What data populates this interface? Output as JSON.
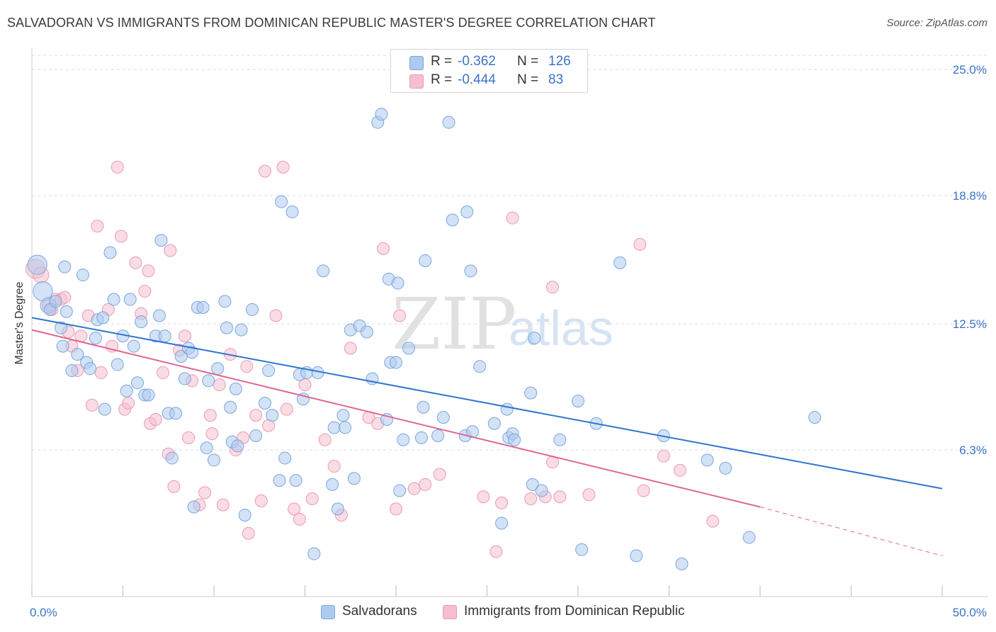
{
  "title": "SALVADORAN VS IMMIGRANTS FROM DOMINICAN REPUBLIC MASTER'S DEGREE CORRELATION CHART",
  "source": "Source: ZipAtlas.com",
  "watermark": {
    "zip": "ZIP",
    "atlas": "atlas"
  },
  "legend_top": {
    "rows": [
      {
        "r_label": "R =",
        "r_value": "-0.362",
        "n_label": "N =",
        "n_value": "126"
      },
      {
        "r_label": "R =",
        "r_value": "-0.444",
        "n_label": "N =",
        "n_value": "83"
      }
    ]
  },
  "legend_bottom": {
    "items": [
      {
        "label": "Salvadorans"
      },
      {
        "label": "Immigrants from Dominican Republic"
      }
    ]
  },
  "colors": {
    "blue_fill": "#aecbef",
    "blue_stroke": "#7aa7dd",
    "blue_line": "#2f74d0",
    "pink_fill": "#f6bfd0",
    "pink_stroke": "#ec9ab4",
    "pink_line": "#e0668f",
    "tick_text": "#3b73c8",
    "grid": "#dcdcdc"
  },
  "chart_data": {
    "type": "scatter",
    "title": "SALVADORAN VS IMMIGRANTS FROM DOMINICAN REPUBLIC MASTER'S DEGREE CORRELATION CHART",
    "xlabel": "",
    "ylabel": "Master's Degree",
    "xlim": [
      0,
      50
    ],
    "ylim": [
      0,
      25.5
    ],
    "x_tick_labels": [
      "0.0%",
      "50.0%"
    ],
    "y_ticks": [
      6.3,
      12.5,
      18.8,
      25.0
    ],
    "y_tick_labels": [
      "6.3%",
      "12.5%",
      "18.8%",
      "25.0%"
    ],
    "grid": "horizontal dashed",
    "legend_position": "top-center",
    "series": [
      {
        "name": "Salvadorans",
        "trend": {
          "x": [
            0,
            50
          ],
          "y": [
            12.8,
            4.4
          ]
        },
        "points": [
          [
            0.3,
            15.4,
            1.6
          ],
          [
            0.6,
            14.1,
            1.6
          ],
          [
            0.9,
            13.4,
            1.3
          ],
          [
            1.0,
            13.2,
            1.0
          ],
          [
            1.3,
            13.6,
            1.0
          ],
          [
            1.6,
            12.3,
            1.0
          ],
          [
            1.7,
            11.4,
            1.0
          ],
          [
            1.8,
            15.3,
            1.0
          ],
          [
            1.9,
            13.1,
            1.0
          ],
          [
            2.2,
            10.2,
            1.0
          ],
          [
            2.5,
            11.0,
            1.0
          ],
          [
            2.8,
            14.9,
            1.0
          ],
          [
            3.0,
            10.6,
            1.0
          ],
          [
            3.2,
            10.3,
            1.0
          ],
          [
            3.5,
            11.8,
            1.0
          ],
          [
            3.6,
            12.7,
            1.0
          ],
          [
            3.9,
            12.8,
            1.0
          ],
          [
            4.0,
            8.3,
            1.0
          ],
          [
            4.3,
            16.0,
            1.0
          ],
          [
            4.5,
            13.7,
            1.0
          ],
          [
            4.7,
            10.5,
            1.0
          ],
          [
            5.0,
            11.9,
            1.0
          ],
          [
            5.2,
            9.2,
            1.0
          ],
          [
            5.4,
            13.7,
            1.0
          ],
          [
            5.6,
            11.4,
            1.0
          ],
          [
            5.8,
            9.6,
            1.0
          ],
          [
            6.0,
            12.6,
            1.0
          ],
          [
            6.2,
            9.0,
            1.0
          ],
          [
            6.4,
            9.0,
            1.0
          ],
          [
            6.8,
            11.9,
            1.0
          ],
          [
            7.0,
            12.9,
            1.0
          ],
          [
            7.1,
            16.6,
            1.0
          ],
          [
            7.3,
            11.9,
            1.0
          ],
          [
            7.5,
            8.1,
            1.0
          ],
          [
            7.7,
            5.9,
            1.0
          ],
          [
            7.9,
            8.1,
            1.0
          ],
          [
            8.2,
            10.9,
            1.0
          ],
          [
            8.4,
            9.8,
            1.0
          ],
          [
            8.6,
            11.3,
            1.0
          ],
          [
            8.8,
            11.1,
            1.0
          ],
          [
            8.9,
            3.5,
            1.0
          ],
          [
            9.1,
            13.3,
            1.0
          ],
          [
            9.4,
            13.3,
            1.0
          ],
          [
            9.6,
            6.4,
            1.0
          ],
          [
            9.7,
            9.7,
            1.0
          ],
          [
            10.0,
            5.8,
            1.0
          ],
          [
            10.2,
            10.3,
            1.0
          ],
          [
            10.6,
            13.6,
            1.0
          ],
          [
            10.7,
            12.3,
            1.0
          ],
          [
            10.9,
            8.4,
            1.0
          ],
          [
            11.0,
            6.7,
            1.0
          ],
          [
            11.2,
            9.3,
            1.0
          ],
          [
            11.3,
            6.5,
            1.0
          ],
          [
            11.5,
            12.2,
            1.0
          ],
          [
            11.7,
            3.1,
            1.0
          ],
          [
            12.1,
            13.2,
            1.0
          ],
          [
            12.3,
            7.0,
            1.0
          ],
          [
            12.8,
            8.6,
            1.0
          ],
          [
            13.0,
            10.2,
            1.0
          ],
          [
            13.2,
            8.0,
            1.0
          ],
          [
            13.6,
            4.8,
            1.0
          ],
          [
            13.7,
            18.5,
            1.0
          ],
          [
            13.9,
            5.9,
            1.0
          ],
          [
            14.3,
            18.0,
            1.0
          ],
          [
            14.5,
            4.8,
            1.0
          ],
          [
            14.7,
            10.0,
            1.0
          ],
          [
            14.9,
            8.8,
            1.0
          ],
          [
            15.1,
            10.1,
            1.0
          ],
          [
            15.5,
            1.2,
            1.0
          ],
          [
            15.7,
            10.1,
            1.0
          ],
          [
            16.0,
            15.1,
            1.0
          ],
          [
            16.5,
            4.6,
            1.0
          ],
          [
            16.6,
            7.4,
            1.0
          ],
          [
            16.8,
            3.4,
            1.0
          ],
          [
            17.1,
            8.0,
            1.0
          ],
          [
            17.2,
            7.4,
            1.0
          ],
          [
            17.5,
            12.2,
            1.0
          ],
          [
            17.7,
            4.9,
            1.0
          ],
          [
            18.0,
            12.4,
            1.0
          ],
          [
            18.4,
            12.1,
            1.0
          ],
          [
            18.7,
            9.8,
            1.0
          ],
          [
            19.0,
            22.4,
            1.0
          ],
          [
            19.2,
            22.8,
            1.0
          ],
          [
            19.5,
            7.8,
            1.0
          ],
          [
            19.6,
            14.7,
            1.0
          ],
          [
            19.7,
            10.6,
            1.0
          ],
          [
            20.0,
            10.6,
            1.0
          ],
          [
            20.1,
            14.5,
            1.0
          ],
          [
            20.2,
            4.3,
            1.0
          ],
          [
            20.4,
            6.8,
            1.0
          ],
          [
            20.7,
            11.3,
            1.0
          ],
          [
            21.4,
            6.9,
            1.0
          ],
          [
            21.5,
            8.4,
            1.0
          ],
          [
            21.6,
            15.6,
            1.0
          ],
          [
            22.3,
            7.0,
            1.0
          ],
          [
            22.6,
            7.9,
            1.0
          ],
          [
            22.9,
            22.4,
            1.0
          ],
          [
            23.1,
            17.6,
            1.0
          ],
          [
            23.8,
            7.0,
            1.0
          ],
          [
            23.9,
            18.0,
            1.0
          ],
          [
            24.1,
            15.1,
            1.0
          ],
          [
            24.2,
            7.2,
            1.0
          ],
          [
            24.6,
            10.4,
            1.0
          ],
          [
            25.4,
            7.6,
            1.0
          ],
          [
            25.8,
            2.7,
            1.0
          ],
          [
            26.1,
            8.3,
            1.0
          ],
          [
            26.2,
            6.9,
            1.0
          ],
          [
            26.4,
            7.1,
            1.0
          ],
          [
            26.5,
            6.8,
            1.0
          ],
          [
            27.4,
            9.1,
            1.0
          ],
          [
            27.5,
            4.6,
            1.0
          ],
          [
            27.6,
            11.8,
            1.0
          ],
          [
            28.0,
            4.3,
            1.0
          ],
          [
            29.0,
            6.8,
            1.0
          ],
          [
            30.0,
            8.7,
            1.0
          ],
          [
            30.2,
            1.4,
            1.0
          ],
          [
            31.0,
            7.6,
            1.0
          ],
          [
            32.3,
            15.5,
            1.0
          ],
          [
            33.2,
            1.1,
            1.0
          ],
          [
            34.7,
            7.0,
            1.0
          ],
          [
            35.7,
            0.7,
            1.0
          ],
          [
            37.1,
            5.8,
            1.0
          ],
          [
            38.1,
            5.4,
            1.0
          ],
          [
            39.4,
            2.0,
            1.0
          ],
          [
            43.0,
            7.9,
            1.0
          ]
        ]
      },
      {
        "name": "Immigrants from Dominican Republic",
        "trend": {
          "x": [
            0,
            40
          ],
          "y": [
            12.2,
            3.5
          ]
        },
        "trend_dashed": {
          "x": [
            40,
            50
          ],
          "y": [
            3.5,
            1.1
          ]
        },
        "points": [
          [
            0.2,
            15.2,
            1.6
          ],
          [
            0.5,
            14.9,
            1.3
          ],
          [
            0.9,
            13.4,
            1.0
          ],
          [
            1.1,
            13.2,
            1.0
          ],
          [
            1.3,
            13.7,
            1.0
          ],
          [
            1.6,
            13.7,
            1.0
          ],
          [
            1.8,
            13.8,
            1.0
          ],
          [
            2.0,
            12.1,
            1.0
          ],
          [
            2.2,
            11.4,
            1.0
          ],
          [
            2.5,
            10.2,
            1.0
          ],
          [
            2.7,
            11.9,
            1.0
          ],
          [
            3.1,
            12.9,
            1.0
          ],
          [
            3.3,
            8.5,
            1.0
          ],
          [
            3.6,
            17.3,
            1.0
          ],
          [
            3.8,
            10.1,
            1.0
          ],
          [
            4.2,
            13.2,
            1.0
          ],
          [
            4.4,
            11.4,
            1.0
          ],
          [
            4.7,
            20.2,
            1.0
          ],
          [
            4.9,
            16.8,
            1.0
          ],
          [
            5.1,
            8.3,
            1.0
          ],
          [
            5.3,
            8.6,
            1.0
          ],
          [
            5.7,
            15.5,
            1.0
          ],
          [
            6.0,
            13.0,
            1.0
          ],
          [
            6.2,
            14.1,
            1.0
          ],
          [
            6.4,
            15.1,
            1.0
          ],
          [
            6.5,
            7.6,
            1.0
          ],
          [
            6.8,
            7.8,
            1.0
          ],
          [
            7.2,
            10.1,
            1.0
          ],
          [
            7.5,
            6.1,
            1.0
          ],
          [
            7.6,
            16.1,
            1.0
          ],
          [
            7.8,
            4.5,
            1.0
          ],
          [
            8.1,
            11.2,
            1.0
          ],
          [
            8.4,
            11.9,
            1.0
          ],
          [
            8.6,
            6.9,
            1.0
          ],
          [
            8.8,
            9.7,
            1.0
          ],
          [
            9.2,
            3.6,
            1.0
          ],
          [
            9.5,
            4.2,
            1.0
          ],
          [
            9.8,
            8.0,
            1.0
          ],
          [
            9.9,
            7.1,
            1.0
          ],
          [
            10.3,
            9.5,
            1.0
          ],
          [
            10.5,
            3.6,
            1.0
          ],
          [
            10.9,
            11.0,
            1.0
          ],
          [
            11.2,
            6.3,
            1.0
          ],
          [
            11.6,
            6.9,
            1.0
          ],
          [
            11.8,
            10.4,
            1.0
          ],
          [
            11.9,
            2.2,
            1.0
          ],
          [
            12.3,
            8.0,
            1.0
          ],
          [
            12.6,
            3.8,
            1.0
          ],
          [
            12.8,
            20.0,
            1.0
          ],
          [
            13.0,
            7.5,
            1.0
          ],
          [
            13.4,
            12.9,
            1.0
          ],
          [
            13.8,
            20.2,
            1.0
          ],
          [
            14.0,
            8.3,
            1.0
          ],
          [
            14.4,
            3.4,
            1.0
          ],
          [
            14.7,
            2.9,
            1.0
          ],
          [
            15.0,
            9.5,
            1.0
          ],
          [
            15.4,
            3.9,
            1.0
          ],
          [
            16.1,
            6.8,
            1.0
          ],
          [
            16.6,
            5.5,
            1.0
          ],
          [
            17.0,
            3.1,
            1.0
          ],
          [
            17.5,
            11.3,
            1.0
          ],
          [
            18.5,
            7.9,
            1.0
          ],
          [
            19.0,
            7.6,
            1.0
          ],
          [
            19.3,
            16.2,
            1.0
          ],
          [
            20.0,
            3.4,
            1.0
          ],
          [
            20.2,
            12.9,
            1.0
          ],
          [
            21.0,
            4.4,
            1.0
          ],
          [
            21.6,
            4.6,
            1.0
          ],
          [
            22.4,
            5.1,
            1.0
          ],
          [
            24.8,
            4.0,
            1.0
          ],
          [
            25.5,
            1.3,
            1.0
          ],
          [
            25.8,
            3.7,
            1.0
          ],
          [
            26.4,
            17.7,
            1.0
          ],
          [
            27.4,
            3.9,
            1.0
          ],
          [
            28.2,
            4.0,
            1.0
          ],
          [
            28.6,
            5.7,
            1.0
          ],
          [
            29.0,
            4.0,
            1.0
          ],
          [
            30.6,
            4.1,
            1.0
          ],
          [
            33.4,
            16.4,
            1.0
          ],
          [
            33.6,
            4.3,
            1.0
          ],
          [
            34.7,
            6.0,
            1.0
          ],
          [
            35.6,
            5.3,
            1.0
          ],
          [
            37.4,
            2.8,
            1.0
          ],
          [
            28.6,
            14.3,
            1.0
          ]
        ]
      }
    ]
  }
}
